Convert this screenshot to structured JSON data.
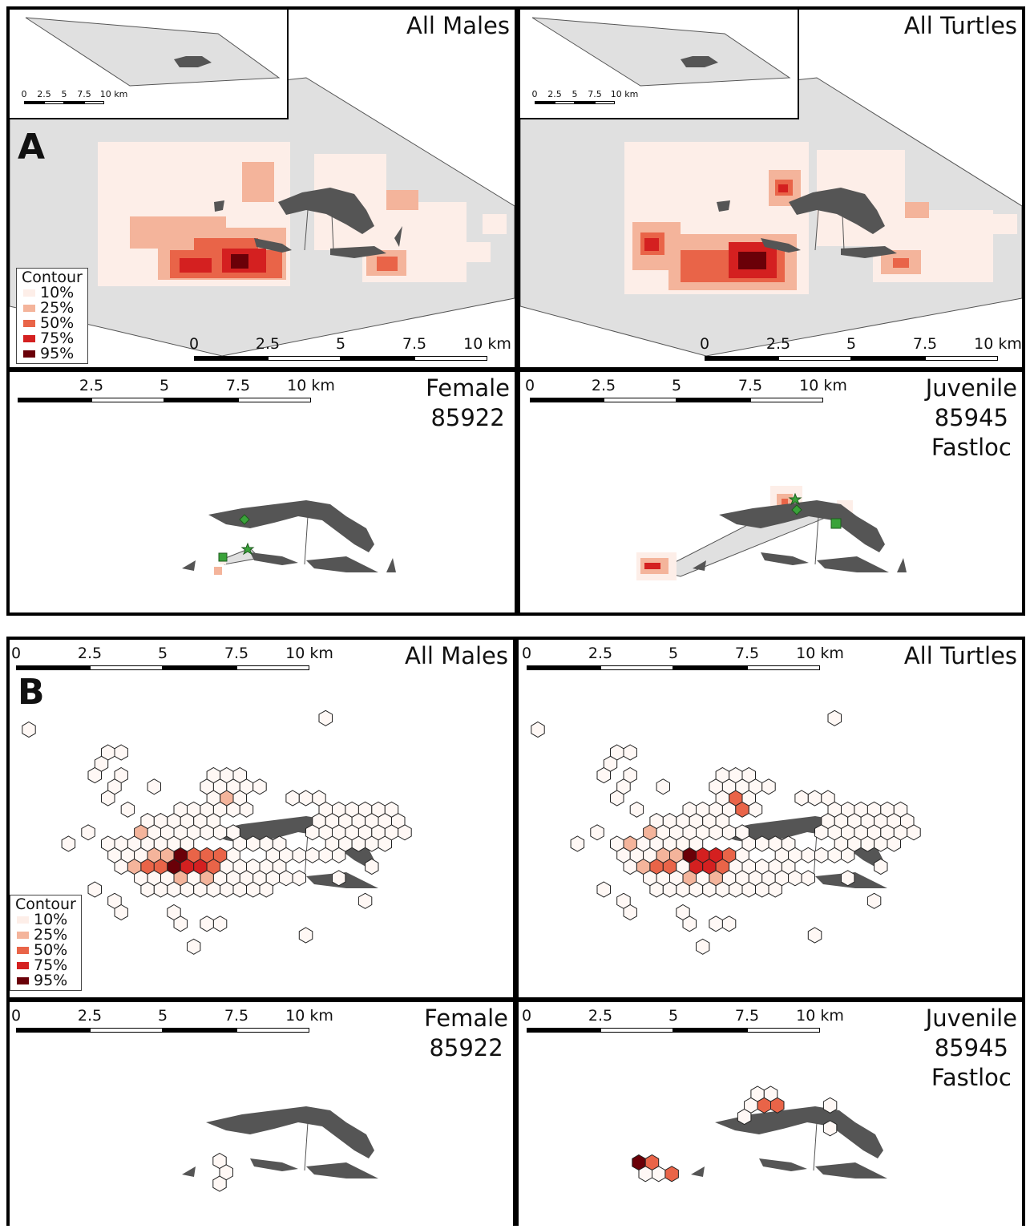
{
  "figure": {
    "block_a": {
      "letter": "A",
      "panels": [
        {
          "title": "All Males"
        },
        {
          "title": "All Turtles"
        },
        {
          "title": "Female\n85922"
        },
        {
          "title": "Juvenile\n85945\nFastloc"
        }
      ],
      "inset_scale": [
        "0",
        "2.5",
        "5",
        "7.5",
        "10 km"
      ],
      "top_scale": [
        "0",
        "2.5",
        "5",
        "7.5",
        "10 km"
      ],
      "bottom_scale_left": [
        "2.5",
        "5",
        "7.5",
        "10 km"
      ],
      "bottom_scale_right": [
        "0",
        "2.5",
        "5",
        "7.5",
        "10 km"
      ]
    },
    "block_b": {
      "letter": "B",
      "panels": [
        {
          "title": "All Males"
        },
        {
          "title": "All Turtles"
        },
        {
          "title": "Female\n85922"
        },
        {
          "title": "Juvenile\n85945\nFastloc"
        }
      ],
      "scale": [
        "0",
        "2.5",
        "5",
        "7.5",
        "10 km"
      ]
    },
    "legend": {
      "title": "Contour",
      "levels": [
        {
          "label": "10%",
          "color": "#fdeee8"
        },
        {
          "label": "25%",
          "color": "#f4b49b"
        },
        {
          "label": "50%",
          "color": "#e96448"
        },
        {
          "label": "75%",
          "color": "#d42020"
        },
        {
          "label": "95%",
          "color": "#6a0008"
        }
      ]
    },
    "colors": {
      "land": "#555555",
      "study_area": "#e0e0e0",
      "marker": "#3aa33a"
    }
  }
}
